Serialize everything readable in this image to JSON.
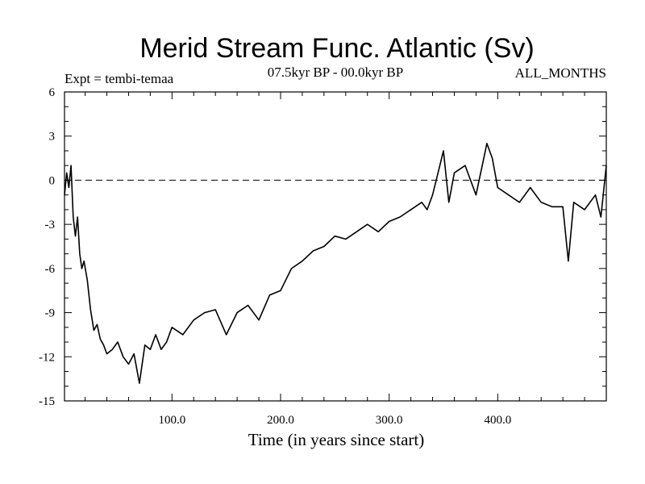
{
  "chart_data": {
    "type": "line",
    "title": "Merid Stream Func. Atlantic (Sv)",
    "subtitle": "07.5kyr BP - 00.0kyr BP",
    "left_note": "Expt = tembi-temaa",
    "right_note": "ALL_MONTHS",
    "xlabel": "Time (in years since start)",
    "ylabel": "",
    "xlim": [
      1,
      500
    ],
    "ylim": [
      -15,
      6
    ],
    "x_ticks": [
      100,
      200,
      300,
      400
    ],
    "x_tick_labels": [
      "100.0",
      "200.0",
      "300.0",
      "400.0"
    ],
    "y_ticks": [
      6,
      3,
      0,
      -3,
      -6,
      -9,
      -12,
      -15
    ],
    "y_tick_labels": [
      "6",
      "3",
      "0",
      "-3",
      "-6",
      "-9",
      "-12",
      "-15"
    ],
    "reference_line": {
      "y": 0,
      "style": "dashed"
    },
    "series": [
      {
        "name": "Merid Stream Func. Atlantic",
        "x": [
          1,
          3,
          5,
          7,
          9,
          11,
          13,
          15,
          17,
          19,
          22,
          25,
          28,
          31,
          34,
          37,
          40,
          45,
          50,
          55,
          60,
          65,
          70,
          75,
          80,
          85,
          90,
          95,
          100,
          110,
          120,
          130,
          140,
          150,
          160,
          170,
          180,
          190,
          200,
          210,
          220,
          230,
          240,
          250,
          260,
          270,
          280,
          290,
          300,
          310,
          320,
          330,
          335,
          340,
          345,
          350,
          355,
          360,
          370,
          380,
          390,
          395,
          400,
          410,
          420,
          430,
          440,
          450,
          460,
          465,
          470,
          480,
          490,
          495,
          500
        ],
        "y": [
          -1.0,
          0.5,
          -0.5,
          1.0,
          -2.5,
          -3.8,
          -2.5,
          -5.0,
          -6.0,
          -5.5,
          -6.8,
          -8.8,
          -10.2,
          -9.8,
          -10.8,
          -11.2,
          -11.8,
          -11.5,
          -11.0,
          -12.0,
          -12.5,
          -11.8,
          -13.8,
          -11.2,
          -11.5,
          -10.5,
          -11.5,
          -11.0,
          -10.0,
          -10.5,
          -9.5,
          -9.0,
          -8.8,
          -10.5,
          -9.0,
          -8.5,
          -9.5,
          -7.8,
          -7.5,
          -6.0,
          -5.5,
          -4.8,
          -4.5,
          -3.8,
          -4.0,
          -3.5,
          -3.0,
          -3.5,
          -2.8,
          -2.5,
          -2.0,
          -1.5,
          -2.0,
          -1.0,
          0.5,
          2.0,
          -1.5,
          0.5,
          1.0,
          -1.0,
          2.5,
          1.5,
          -0.5,
          -1.0,
          -1.5,
          -0.5,
          -1.5,
          -1.8,
          -1.8,
          -5.5,
          -1.5,
          -2.0,
          -1.0,
          -2.5,
          1.0
        ]
      }
    ]
  }
}
